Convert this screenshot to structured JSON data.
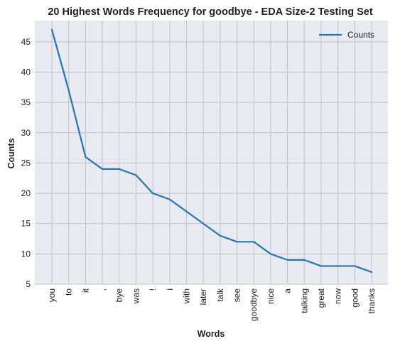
{
  "chart_data": {
    "type": "line",
    "title": "20 Highest Words Frequency for goodbye - EDA Size-2 Testing Set",
    "xlabel": "Words",
    "ylabel": "Counts",
    "categories": [
      "you",
      "to",
      "it",
      ",",
      "bye",
      "was",
      "!",
      "i",
      "with",
      "later",
      "talk",
      "see",
      "goodbye",
      "nice",
      "a",
      "talking",
      "great",
      "now",
      "good",
      "thanks"
    ],
    "series": [
      {
        "name": "Counts",
        "color": "#1f77b4",
        "values": [
          47,
          37,
          26,
          24,
          24,
          23,
          20,
          19,
          17,
          15,
          13,
          12,
          12,
          10,
          9,
          9,
          8,
          8,
          8,
          7
        ]
      }
    ],
    "ylim": [
      5,
      48.5
    ],
    "yticks": [
      5,
      10,
      15,
      20,
      25,
      30,
      35,
      40,
      45
    ],
    "grid": true,
    "legend": "top-right"
  }
}
